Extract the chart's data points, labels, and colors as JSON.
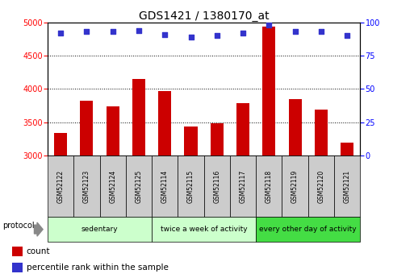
{
  "title": "GDS1421 / 1380170_at",
  "samples": [
    "GSM52122",
    "GSM52123",
    "GSM52124",
    "GSM52125",
    "GSM52114",
    "GSM52115",
    "GSM52116",
    "GSM52117",
    "GSM52118",
    "GSM52119",
    "GSM52120",
    "GSM52121"
  ],
  "counts": [
    3340,
    3820,
    3740,
    4150,
    3970,
    3440,
    3490,
    3790,
    4930,
    3850,
    3690,
    3200
  ],
  "percentile_ranks": [
    92,
    93,
    93,
    94,
    91,
    89,
    90,
    92,
    98,
    93,
    93,
    90
  ],
  "groups": [
    {
      "label": "sedentary",
      "start": 0,
      "end": 4,
      "color": "#ccffcc"
    },
    {
      "label": "twice a week of activity",
      "start": 4,
      "end": 8,
      "color": "#ccffcc"
    },
    {
      "label": "every other day of activity",
      "start": 8,
      "end": 12,
      "color": "#44dd44"
    }
  ],
  "group_colors": [
    "#ccffcc",
    "#ccffcc",
    "#44dd44"
  ],
  "ylim_left": [
    3000,
    5000
  ],
  "ylim_right": [
    0,
    100
  ],
  "yticks_left": [
    3000,
    3500,
    4000,
    4500,
    5000
  ],
  "yticks_right": [
    0,
    25,
    50,
    75,
    100
  ],
  "bar_color": "#cc0000",
  "dot_color": "#3333cc",
  "bar_width": 0.5,
  "title_fontsize": 10,
  "tick_fontsize": 7,
  "label_fontsize": 7,
  "bg_color": "#ffffff",
  "plot_bg": "#ffffff",
  "legend_count_label": "count",
  "legend_pct_label": "percentile rank within the sample",
  "protocol_label": "protocol",
  "sample_box_color": "#cccccc",
  "spine_color": "#000000"
}
